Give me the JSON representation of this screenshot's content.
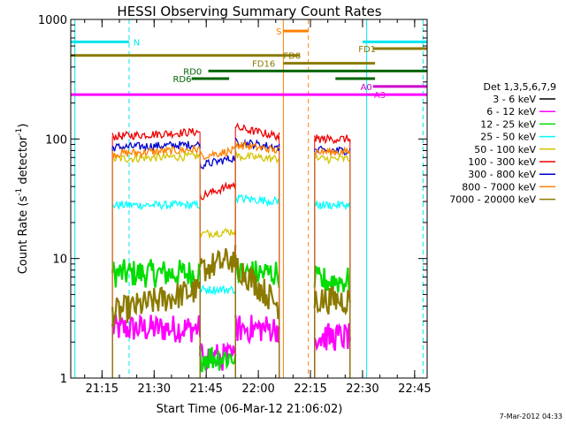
{
  "chart_data": {
    "type": "line",
    "title": "HESSI Observing Summary Count Rates",
    "xlabel": "Start Time (06-Mar-12 21:06:02)",
    "ylabel_main": "Count Rate (s",
    "ylabel_sup1": "-1",
    "ylabel_mid": " detector",
    "ylabel_sup2": "-1",
    "ylabel_end": ")",
    "y_scale": "log",
    "ylim": [
      1,
      1000
    ],
    "xlim_minutes": [
      21.1,
      22.81
    ],
    "x_ticks": [
      {
        "t": 21.25,
        "label": "21:15"
      },
      {
        "t": 21.5,
        "label": "21:30"
      },
      {
        "t": 21.75,
        "label": "21:45"
      },
      {
        "t": 22.0,
        "label": "22:00"
      },
      {
        "t": 22.25,
        "label": "22:15"
      },
      {
        "t": 22.5,
        "label": "22:30"
      },
      {
        "t": 22.75,
        "label": "22:45"
      }
    ],
    "y_ticks": [
      {
        "v": 1,
        "label": "1"
      },
      {
        "v": 10,
        "label": "10"
      },
      {
        "v": 100,
        "label": "100"
      },
      {
        "v": 1000,
        "label": "1000"
      }
    ],
    "legend_title": "Det 1,3,5,6,7,9",
    "legend_position": "right",
    "series": [
      {
        "name": "3 - 6 keV",
        "color": "#000000"
      },
      {
        "name": "6 - 12 keV",
        "color": "#ff00ff"
      },
      {
        "name": "12 - 25 keV",
        "color": "#00dd00"
      },
      {
        "name": "25 - 50 keV",
        "color": "#00ffff"
      },
      {
        "name": "50 - 100 keV",
        "color": "#d4c400"
      },
      {
        "name": "100 - 300 keV",
        "color": "#ee0000"
      },
      {
        "name": "300 - 800 keV",
        "color": "#0000cc"
      },
      {
        "name": "800 - 7000 keV",
        "color": "#ff8000"
      },
      {
        "name": "7000 - 20000 keV",
        "color": "#8b7a00"
      }
    ],
    "flag_bars": [
      {
        "label": "N",
        "color": "#00e5ee",
        "y": 650,
        "segments": [
          [
            21.1,
            21.38
          ],
          [
            22.5,
            22.81
          ]
        ],
        "label_t": 21.4
      },
      {
        "label": "S",
        "color": "#ff8000",
        "y": 800,
        "segments": [
          [
            22.12,
            22.24
          ]
        ],
        "label_t": 22.085
      },
      {
        "label": "FD1",
        "color": "#8b7a00",
        "y": 570,
        "segments": [
          [
            22.55,
            22.81
          ]
        ],
        "label_t": 22.48
      },
      {
        "label": "FD8",
        "color": "#8b7a00",
        "y": 500,
        "segments": [
          [
            21.1,
            22.2
          ]
        ],
        "label_t": 22.12
      },
      {
        "label": "FD16",
        "color": "#8b7a00",
        "y": 430,
        "segments": [
          [
            22.12,
            22.56
          ]
        ],
        "label_t": 21.97
      },
      {
        "label": "RD0",
        "color": "#006400",
        "y": 370,
        "segments": [
          [
            21.76,
            22.81
          ]
        ],
        "label_t": 21.64
      },
      {
        "label": "RD6",
        "color": "#006400",
        "y": 320,
        "segments": [
          [
            21.68,
            21.86
          ],
          [
            22.37,
            22.56
          ]
        ],
        "label_t": 21.59
      },
      {
        "label": "A0",
        "color": "#cc00cc",
        "y": 275,
        "segments": [
          [
            22.55,
            22.81
          ]
        ],
        "label_t": 22.49
      },
      {
        "label": "A3",
        "color": "#ff00ff",
        "y": 235,
        "segments": [
          [
            21.1,
            22.81
          ]
        ],
        "label_t": 22.555
      }
    ],
    "event_lines": [
      {
        "t": 21.12,
        "color": "#00e5ee",
        "style": "solid"
      },
      {
        "t": 21.38,
        "color": "#00e5ee",
        "style": "dashed"
      },
      {
        "t": 22.12,
        "color": "#ff8000",
        "style": "solid"
      },
      {
        "t": 22.24,
        "color": "#ff8000",
        "style": "dashed"
      },
      {
        "t": 22.52,
        "color": "#00e5ee",
        "style": "solid"
      },
      {
        "t": 22.79,
        "color": "#00e5ee",
        "style": "dashed"
      }
    ],
    "segments": [
      {
        "t0": 21.3,
        "t1": 21.72,
        "levels": {
          "6 - 12 keV": [
            2.6,
            2.6
          ],
          "12 - 25 keV": [
            7.5,
            7.5
          ],
          "25 - 50 keV": [
            28,
            28
          ],
          "50 - 100 keV": [
            68,
            72
          ],
          "100 - 300 keV": [
            105,
            115
          ],
          "300 - 800 keV": [
            85,
            90
          ],
          "800 - 7000 keV": [
            75,
            82
          ],
          "7000 - 20000 keV": [
            3.5,
            5.5
          ]
        }
      },
      {
        "t0": 21.72,
        "t1": 21.89,
        "levels": {
          "6 - 12 keV": [
            1.5,
            1.5
          ],
          "12 - 25 keV": [
            1.5,
            1.5
          ],
          "25 - 50 keV": [
            5.5,
            5.5
          ],
          "50 - 100 keV": [
            16,
            17
          ],
          "100 - 300 keV": [
            33,
            42
          ],
          "300 - 800 keV": [
            60,
            70
          ],
          "800 - 7000 keV": [
            72,
            80
          ],
          "7000 - 20000 keV": [
            8,
            10
          ]
        }
      },
      {
        "t0": 21.89,
        "t1": 22.1,
        "levels": {
          "6 - 12 keV": [
            2.6,
            2.6
          ],
          "12 - 25 keV": [
            7.5,
            7.5
          ],
          "25 - 50 keV": [
            32,
            30
          ],
          "50 - 100 keV": [
            72,
            68
          ],
          "100 - 300 keV": [
            125,
            105
          ],
          "300 - 800 keV": [
            95,
            85
          ],
          "800 - 7000 keV": [
            90,
            80
          ],
          "7000 - 20000 keV": [
            9,
            4
          ]
        }
      },
      {
        "t0": 22.27,
        "t1": 22.44,
        "levels": {
          "6 - 12 keV": [
            2.2,
            2.2
          ],
          "12 - 25 keV": [
            6.5,
            6.5
          ],
          "25 - 50 keV": [
            28,
            28
          ],
          "50 - 100 keV": [
            68,
            68
          ],
          "100 - 300 keV": [
            100,
            100
          ],
          "300 - 800 keV": [
            80,
            80
          ],
          "800 - 7000 keV": [
            78,
            78
          ],
          "7000 - 20000 keV": [
            4.5,
            4.5
          ]
        }
      }
    ]
  },
  "footer_date": "7-Mar-2012 04:33"
}
